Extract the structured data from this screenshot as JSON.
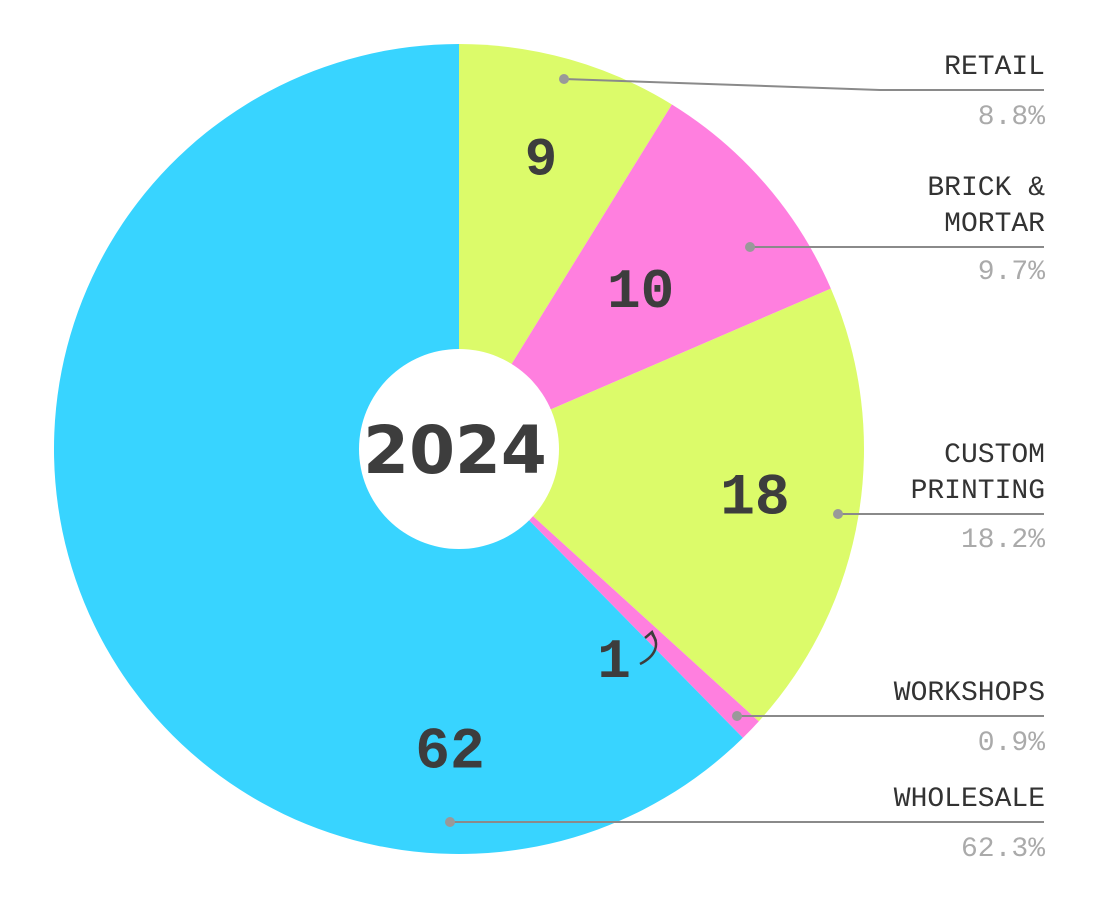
{
  "chart_data": {
    "type": "pie",
    "center_label": "2024",
    "slices": [
      {
        "name": "RETAIL",
        "value": 9,
        "value_label": "9",
        "percent": 8.8,
        "percent_label": "8.8%",
        "color": "#dcfb6a"
      },
      {
        "name": "BRICK & MORTAR",
        "name_lines": [
          "BRICK &",
          "MORTAR"
        ],
        "value": 10,
        "value_label": "10",
        "percent": 9.7,
        "percent_label": "9.7%",
        "color": "#ff7fdf"
      },
      {
        "name": "CUSTOM PRINTING",
        "name_lines": [
          "CUSTOM",
          "PRINTING"
        ],
        "value": 18,
        "value_label": "18",
        "percent": 18.2,
        "percent_label": "18.2%",
        "color": "#dcfb6a"
      },
      {
        "name": "WORKSHOPS",
        "value": 1,
        "value_label": "1",
        "percent": 0.9,
        "percent_label": "0.9%",
        "color": "#ff7fdf"
      },
      {
        "name": "WHOLESALE",
        "value": 62,
        "value_label": "62",
        "percent": 62.3,
        "percent_label": "62.3%",
        "color": "#38d4ff"
      }
    ],
    "legend_placement": "right",
    "grid": false
  }
}
